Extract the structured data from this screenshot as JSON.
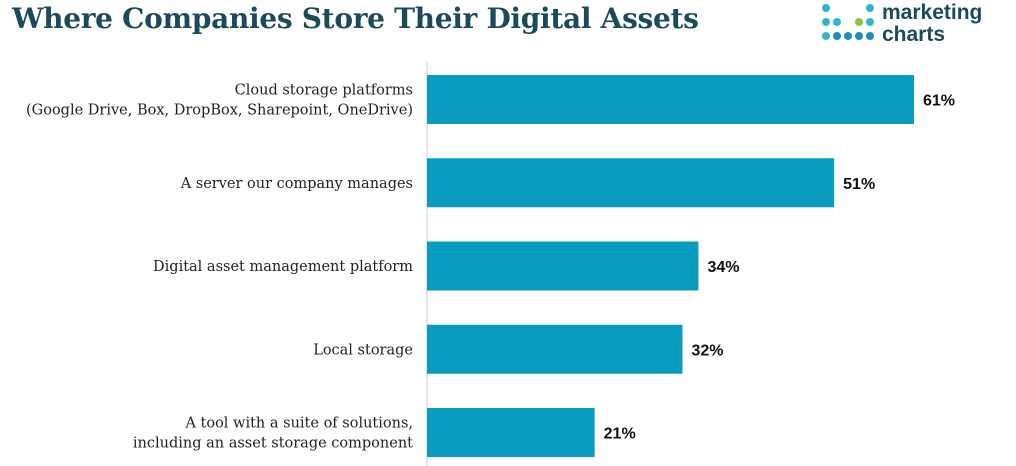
{
  "title": "Where Companies Store Their Digital Assets",
  "logo": {
    "line1": "marketing",
    "line2": "charts",
    "dot_colors": [
      "#34b4c4",
      "#8cc63f",
      "#1b8fb5"
    ]
  },
  "colors": {
    "bar": "#0a9cbf",
    "title": "#1b4b5a",
    "axis": "#c8c8c8"
  },
  "chart_data": {
    "type": "bar",
    "orientation": "horizontal",
    "title": "Where Companies Store Their Digital Assets",
    "categories": [
      [
        "Cloud storage platforms",
        "(Google Drive, Box, DropBox, Sharepoint, OneDrive)"
      ],
      [
        "A server our company manages"
      ],
      [
        "Digital asset management platform"
      ],
      [
        "Local storage"
      ],
      [
        "A tool with a suite of solutions,",
        "including an asset storage component"
      ]
    ],
    "values": [
      61,
      51,
      34,
      32,
      21
    ],
    "value_labels": [
      "61%",
      "51%",
      "34%",
      "32%",
      "21%"
    ],
    "unit": "%",
    "xlim": [
      0,
      61
    ],
    "grid": false,
    "legend": "none"
  }
}
